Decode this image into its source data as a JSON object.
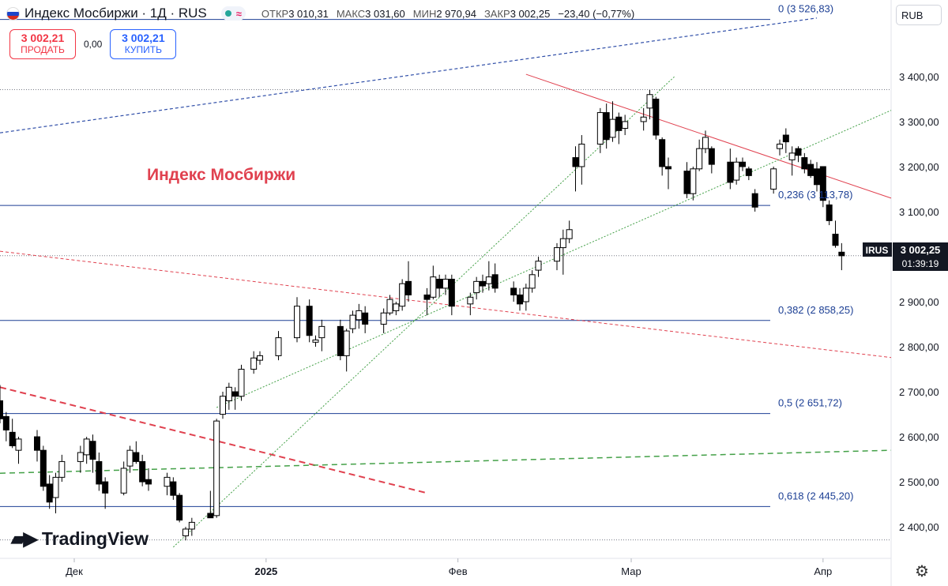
{
  "header": {
    "symbol_title": "Индекс Мосбиржи · 1Д · RUS",
    "indicator_icon": "wave-icon",
    "ohlc": [
      {
        "key": "ОТКР",
        "value": "3 010,31"
      },
      {
        "key": "МАКС",
        "value": "3 031,60"
      },
      {
        "key": "МИН",
        "value": "2 970,94"
      },
      {
        "key": "ЗАКР",
        "value": "3 002,25"
      }
    ],
    "change": "−23,40 (−0,77%)"
  },
  "trade": {
    "sell_price": "3 002,21",
    "sell_label": "ПРОДАТЬ",
    "spread": "0,00",
    "buy_price": "3 002,21",
    "buy_label": "КУПИТЬ"
  },
  "currency": "RUB",
  "annotation": "Индекс Мосбиржи",
  "logo_text": "TradingView",
  "price_tag": {
    "symbol": "IRUS",
    "price": "3 002,25",
    "countdown": "01:39:19"
  },
  "colors": {
    "accent_red": "#e0414f",
    "fib_blue": "#1c3f94",
    "up": "#ffffff",
    "down": "#000000",
    "trend_green": "#43a047"
  },
  "chart_data": {
    "type": "candlestick",
    "x_ticks": [
      {
        "label": "Дек",
        "date": "2024-12-01"
      },
      {
        "label": "2025",
        "date": "2025-01-01"
      },
      {
        "label": "Фев",
        "date": "2025-02-01"
      },
      {
        "label": "Мар",
        "date": "2025-03-01"
      },
      {
        "label": "Апр",
        "date": "2025-04-01"
      }
    ],
    "y_ticks": [
      2400,
      2500,
      2600,
      2700,
      2800,
      2900,
      3000,
      3100,
      3200,
      3300,
      3400
    ],
    "y_tick_labels": [
      "2 400,00",
      "2 500,00",
      "2 600,00",
      "2 700,00",
      "2 800,00",
      "2 900,00",
      "3 000,00",
      "3 100,00",
      "3 200,00",
      "3 300,00",
      "3 400,00"
    ],
    "ylim": [
      2330,
      3570
    ],
    "xlim": [
      "2024-11-19",
      "2025-04-12"
    ],
    "fib_levels": [
      {
        "label": "0 (3 526,83)",
        "value": 3526.83
      },
      {
        "label": "0,236 (3 113,78)",
        "value": 3113.78
      },
      {
        "label": "0,382 (2 858,25)",
        "value": 2858.25
      },
      {
        "label": "0,5 (2 651,72)",
        "value": 2651.72
      },
      {
        "label": "0,618 (2 445,20)",
        "value": 2445.2
      }
    ],
    "dotted_levels": [
      3371,
      3002.25,
      2371
    ],
    "trendlines": [
      {
        "style": "solid-red",
        "from": [
          "2025-02-12",
          3405
        ],
        "to": [
          "2025-04-12",
          3130
        ]
      },
      {
        "style": "dashed-blue",
        "from": [
          "2024-11-19",
          3275
        ],
        "to": [
          "2025-03-31",
          3530
        ]
      },
      {
        "style": "dashed-red-thin",
        "from": [
          "2024-11-19",
          3012
        ],
        "to": [
          "2025-04-12",
          2776
        ]
      },
      {
        "style": "dashed-red-thick",
        "from": [
          "2024-11-19",
          2710
        ],
        "to": [
          "2025-01-27",
          2475
        ]
      },
      {
        "style": "dotted-green",
        "from": [
          "2024-12-17",
          2355
        ],
        "to": [
          "2025-03-08",
          3400
        ]
      },
      {
        "style": "dotted-green",
        "from": [
          "2024-12-24",
          2665
        ],
        "to": [
          "2025-04-12",
          3325
        ]
      },
      {
        "style": "dashed-green",
        "from": [
          "2024-11-19",
          2519
        ],
        "to": [
          "2025-04-12",
          2570
        ]
      }
    ],
    "candles": [
      {
        "d": "2024-11-19",
        "o": 2680,
        "h": 2715,
        "l": 2630,
        "c": 2640
      },
      {
        "d": "2024-11-20",
        "o": 2645,
        "h": 2655,
        "l": 2590,
        "c": 2615
      },
      {
        "d": "2024-11-21",
        "o": 2610,
        "h": 2640,
        "l": 2575,
        "c": 2580
      },
      {
        "d": "2024-11-22",
        "o": 2570,
        "h": 2600,
        "l": 2540,
        "c": 2595
      },
      {
        "d": "2024-11-25",
        "o": 2600,
        "h": 2615,
        "l": 2545,
        "c": 2570
      },
      {
        "d": "2024-11-26",
        "o": 2570,
        "h": 2580,
        "l": 2480,
        "c": 2490
      },
      {
        "d": "2024-11-27",
        "o": 2495,
        "h": 2515,
        "l": 2440,
        "c": 2455
      },
      {
        "d": "2024-11-28",
        "o": 2465,
        "h": 2520,
        "l": 2430,
        "c": 2510
      },
      {
        "d": "2024-11-29",
        "o": 2510,
        "h": 2560,
        "l": 2500,
        "c": 2545
      },
      {
        "d": "2024-12-02",
        "o": 2545,
        "h": 2580,
        "l": 2520,
        "c": 2565
      },
      {
        "d": "2024-12-03",
        "o": 2560,
        "h": 2600,
        "l": 2540,
        "c": 2595
      },
      {
        "d": "2024-12-04",
        "o": 2590,
        "h": 2605,
        "l": 2520,
        "c": 2550
      },
      {
        "d": "2024-12-05",
        "o": 2545,
        "h": 2565,
        "l": 2480,
        "c": 2495
      },
      {
        "d": "2024-12-06",
        "o": 2500,
        "h": 2510,
        "l": 2440,
        "c": 2475
      },
      {
        "d": "2024-12-09",
        "o": 2475,
        "h": 2545,
        "l": 2470,
        "c": 2530
      },
      {
        "d": "2024-12-10",
        "o": 2535,
        "h": 2580,
        "l": 2520,
        "c": 2570
      },
      {
        "d": "2024-12-11",
        "o": 2565,
        "h": 2590,
        "l": 2540,
        "c": 2545
      },
      {
        "d": "2024-12-12",
        "o": 2545,
        "h": 2560,
        "l": 2490,
        "c": 2500
      },
      {
        "d": "2024-12-13",
        "o": 2505,
        "h": 2530,
        "l": 2480,
        "c": 2495
      },
      {
        "d": "2024-12-16",
        "o": 2490,
        "h": 2520,
        "l": 2470,
        "c": 2510
      },
      {
        "d": "2024-12-17",
        "o": 2500,
        "h": 2510,
        "l": 2460,
        "c": 2470
      },
      {
        "d": "2024-12-18",
        "o": 2470,
        "h": 2475,
        "l": 2410,
        "c": 2415
      },
      {
        "d": "2024-12-19",
        "o": 2380,
        "h": 2400,
        "l": 2370,
        "c": 2395
      },
      {
        "d": "2024-12-20",
        "o": 2395,
        "h": 2420,
        "l": 2380,
        "c": 2410
      },
      {
        "d": "2024-12-23",
        "o": 2430,
        "h": 2480,
        "l": 2420,
        "c": 2420
      },
      {
        "d": "2024-12-24",
        "o": 2425,
        "h": 2640,
        "l": 2420,
        "c": 2635
      },
      {
        "d": "2024-12-25",
        "o": 2650,
        "h": 2700,
        "l": 2640,
        "c": 2690
      },
      {
        "d": "2024-12-26",
        "o": 2680,
        "h": 2720,
        "l": 2660,
        "c": 2710
      },
      {
        "d": "2024-12-27",
        "o": 2700,
        "h": 2710,
        "l": 2660,
        "c": 2690
      },
      {
        "d": "2024-12-28",
        "o": 2690,
        "h": 2760,
        "l": 2680,
        "c": 2750
      },
      {
        "d": "2024-12-30",
        "o": 2750,
        "h": 2790,
        "l": 2740,
        "c": 2775
      },
      {
        "d": "2024-12-31",
        "o": 2770,
        "h": 2790,
        "l": 2760,
        "c": 2780
      },
      {
        "d": "2025-01-03",
        "o": 2780,
        "h": 2835,
        "l": 2770,
        "c": 2820
      },
      {
        "d": "2025-01-06",
        "o": 2820,
        "h": 2910,
        "l": 2810,
        "c": 2890
      },
      {
        "d": "2025-01-08",
        "o": 2890,
        "h": 2905,
        "l": 2810,
        "c": 2825
      },
      {
        "d": "2025-01-09",
        "o": 2810,
        "h": 2825,
        "l": 2800,
        "c": 2815
      },
      {
        "d": "2025-01-10",
        "o": 2820,
        "h": 2860,
        "l": 2790,
        "c": 2845
      },
      {
        "d": "2025-01-13",
        "o": 2845,
        "h": 2860,
        "l": 2770,
        "c": 2780
      },
      {
        "d": "2025-01-14",
        "o": 2780,
        "h": 2840,
        "l": 2745,
        "c": 2835
      },
      {
        "d": "2025-01-15",
        "o": 2840,
        "h": 2880,
        "l": 2830,
        "c": 2870
      },
      {
        "d": "2025-01-16",
        "o": 2860,
        "h": 2895,
        "l": 2840,
        "c": 2880
      },
      {
        "d": "2025-01-17",
        "o": 2875,
        "h": 2890,
        "l": 2830,
        "c": 2850
      },
      {
        "d": "2025-01-20",
        "o": 2850,
        "h": 2885,
        "l": 2830,
        "c": 2875
      },
      {
        "d": "2025-01-21",
        "o": 2875,
        "h": 2915,
        "l": 2870,
        "c": 2905
      },
      {
        "d": "2025-01-22",
        "o": 2880,
        "h": 2900,
        "l": 2870,
        "c": 2895
      },
      {
        "d": "2025-01-23",
        "o": 2890,
        "h": 2950,
        "l": 2880,
        "c": 2940
      },
      {
        "d": "2025-01-24",
        "o": 2945,
        "h": 2990,
        "l": 2900,
        "c": 2915
      },
      {
        "d": "2025-01-27",
        "o": 2915,
        "h": 2930,
        "l": 2870,
        "c": 2905
      },
      {
        "d": "2025-01-28",
        "o": 2910,
        "h": 2980,
        "l": 2905,
        "c": 2955
      },
      {
        "d": "2025-01-29",
        "o": 2950,
        "h": 2960,
        "l": 2910,
        "c": 2930
      },
      {
        "d": "2025-01-30",
        "o": 2930,
        "h": 2960,
        "l": 2915,
        "c": 2950
      },
      {
        "d": "2025-01-31",
        "o": 2950,
        "h": 2960,
        "l": 2870,
        "c": 2890
      },
      {
        "d": "2025-02-03",
        "o": 2895,
        "h": 2920,
        "l": 2870,
        "c": 2910
      },
      {
        "d": "2025-02-04",
        "o": 2920,
        "h": 2955,
        "l": 2905,
        "c": 2945
      },
      {
        "d": "2025-02-05",
        "o": 2945,
        "h": 2960,
        "l": 2920,
        "c": 2935
      },
      {
        "d": "2025-02-06",
        "o": 2940,
        "h": 2990,
        "l": 2925,
        "c": 2955
      },
      {
        "d": "2025-02-07",
        "o": 2960,
        "h": 2985,
        "l": 2920,
        "c": 2930
      },
      {
        "d": "2025-02-10",
        "o": 2930,
        "h": 2945,
        "l": 2900,
        "c": 2915
      },
      {
        "d": "2025-02-11",
        "o": 2915,
        "h": 2930,
        "l": 2880,
        "c": 2895
      },
      {
        "d": "2025-02-12",
        "o": 2900,
        "h": 2940,
        "l": 2880,
        "c": 2930
      },
      {
        "d": "2025-02-13",
        "o": 2930,
        "h": 2970,
        "l": 2920,
        "c": 2960
      },
      {
        "d": "2025-02-14",
        "o": 2970,
        "h": 3000,
        "l": 2955,
        "c": 2990
      },
      {
        "d": "2025-02-17",
        "o": 2990,
        "h": 3030,
        "l": 2970,
        "c": 3020
      },
      {
        "d": "2025-02-18",
        "o": 3020,
        "h": 3060,
        "l": 2960,
        "c": 3040
      },
      {
        "d": "2025-02-19",
        "o": 3040,
        "h": 3080,
        "l": 3030,
        "c": 3060
      },
      {
        "d": "2025-02-20",
        "o": 3220,
        "h": 3245,
        "l": 3145,
        "c": 3200
      },
      {
        "d": "2025-02-21",
        "o": 3200,
        "h": 3270,
        "l": 3160,
        "c": 3250
      },
      {
        "d": "2025-02-24",
        "o": 3250,
        "h": 3330,
        "l": 3230,
        "c": 3320
      },
      {
        "d": "2025-02-25",
        "o": 3320,
        "h": 3340,
        "l": 3240,
        "c": 3260
      },
      {
        "d": "2025-02-26",
        "o": 3265,
        "h": 3345,
        "l": 3255,
        "c": 3305
      },
      {
        "d": "2025-02-27",
        "o": 3310,
        "h": 3320,
        "l": 3250,
        "c": 3280
      },
      {
        "d": "2025-02-28",
        "o": 3285,
        "h": 3315,
        "l": 3270,
        "c": 3300
      },
      {
        "d": "2025-03-03",
        "o": 3300,
        "h": 3330,
        "l": 3280,
        "c": 3310
      },
      {
        "d": "2025-03-04",
        "o": 3330,
        "h": 3370,
        "l": 3305,
        "c": 3360
      },
      {
        "d": "2025-03-05",
        "o": 3350,
        "h": 3355,
        "l": 3260,
        "c": 3270
      },
      {
        "d": "2025-03-06",
        "o": 3260,
        "h": 3265,
        "l": 3180,
        "c": 3200
      },
      {
        "d": "2025-03-07",
        "o": 3200,
        "h": 3220,
        "l": 3150,
        "c": 3195
      },
      {
        "d": "2025-03-10",
        "o": 3190,
        "h": 3210,
        "l": 3130,
        "c": 3140
      },
      {
        "d": "2025-03-11",
        "o": 3140,
        "h": 3200,
        "l": 3125,
        "c": 3195
      },
      {
        "d": "2025-03-12",
        "o": 3195,
        "h": 3260,
        "l": 3190,
        "c": 3240
      },
      {
        "d": "2025-03-13",
        "o": 3240,
        "h": 3280,
        "l": 3230,
        "c": 3265
      },
      {
        "d": "2025-03-14",
        "o": 3240,
        "h": 3245,
        "l": 3185,
        "c": 3205
      },
      {
        "d": "2025-03-17",
        "o": 3210,
        "h": 3240,
        "l": 3150,
        "c": 3165
      },
      {
        "d": "2025-03-18",
        "o": 3170,
        "h": 3220,
        "l": 3160,
        "c": 3210
      },
      {
        "d": "2025-03-19",
        "o": 3210,
        "h": 3220,
        "l": 3190,
        "c": 3200
      },
      {
        "d": "2025-03-20",
        "o": 3195,
        "h": 3200,
        "l": 3170,
        "c": 3180
      },
      {
        "d": "2025-03-21",
        "o": 3140,
        "h": 3150,
        "l": 3100,
        "c": 3110
      },
      {
        "d": "2025-03-24",
        "o": 3150,
        "h": 3200,
        "l": 3140,
        "c": 3195
      },
      {
        "d": "2025-03-25",
        "o": 3240,
        "h": 3260,
        "l": 3225,
        "c": 3250
      },
      {
        "d": "2025-03-26",
        "o": 3270,
        "h": 3285,
        "l": 3230,
        "c": 3255
      },
      {
        "d": "2025-03-27",
        "o": 3215,
        "h": 3245,
        "l": 3180,
        "c": 3230
      },
      {
        "d": "2025-03-28",
        "o": 3240,
        "h": 3245,
        "l": 3210,
        "c": 3225
      },
      {
        "d": "2025-03-29",
        "o": 3220,
        "h": 3230,
        "l": 3185,
        "c": 3195
      },
      {
        "d": "2025-03-30",
        "o": 3205,
        "h": 3215,
        "l": 3175,
        "c": 3180
      },
      {
        "d": "2025-03-31",
        "o": 3195,
        "h": 3210,
        "l": 3145,
        "c": 3160
      },
      {
        "d": "2025-04-01",
        "o": 3200,
        "h": 3200,
        "l": 3110,
        "c": 3125
      },
      {
        "d": "2025-04-02",
        "o": 3115,
        "h": 3125,
        "l": 3070,
        "c": 3080
      },
      {
        "d": "2025-04-03",
        "o": 3050,
        "h": 3080,
        "l": 3020,
        "c": 3025
      },
      {
        "d": "2025-04-04",
        "o": 3010,
        "h": 3030,
        "l": 2970,
        "c": 3002
      }
    ]
  }
}
